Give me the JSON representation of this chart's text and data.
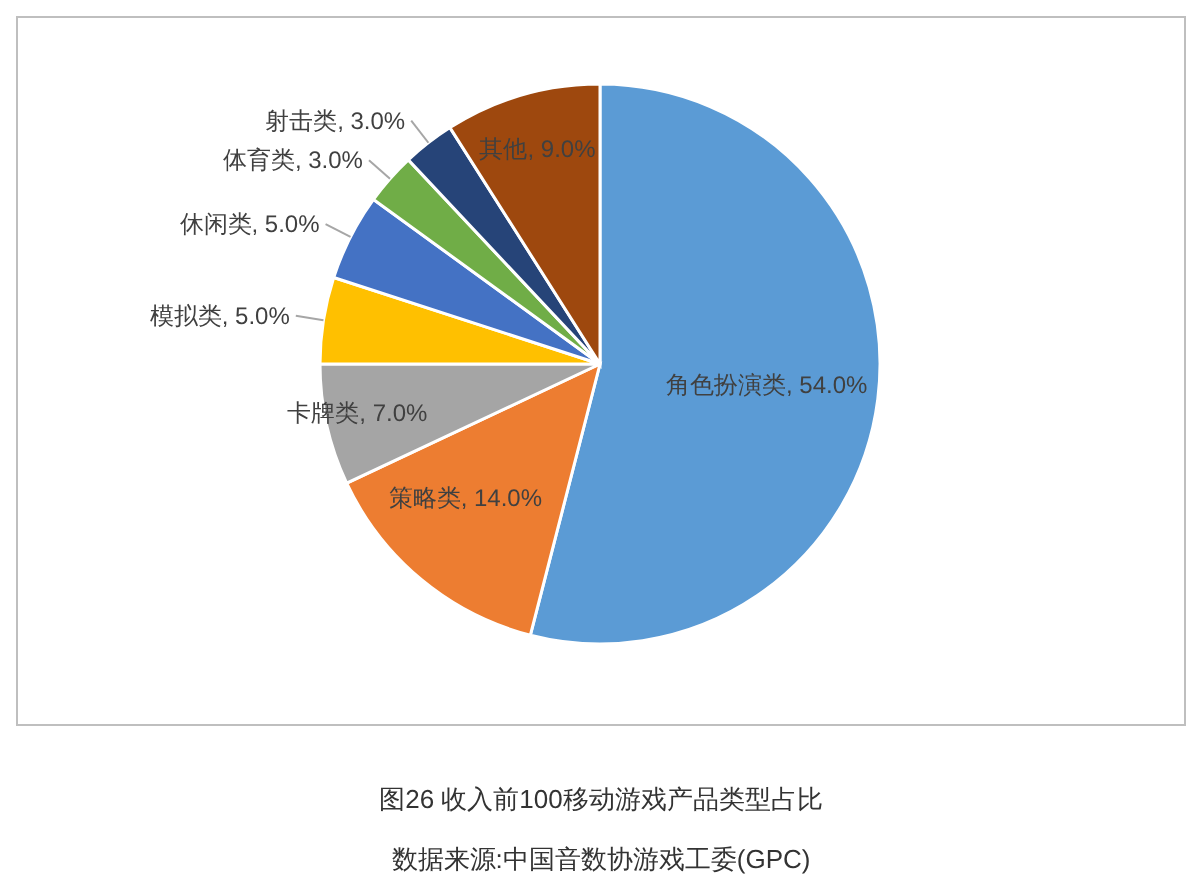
{
  "chart_data": {
    "type": "pie",
    "categories": [
      "角色扮演类",
      "策略类",
      "卡牌类",
      "模拟类",
      "休闲类",
      "体育类",
      "射击类",
      "其他"
    ],
    "values": [
      54,
      14,
      7,
      5,
      5,
      3,
      3,
      9
    ],
    "value_labels": [
      "54.0%",
      "14.0%",
      "7.0%",
      "5.0%",
      "5.0%",
      "3.0%",
      "3.0%",
      "9.0%"
    ],
    "colors": [
      "#5b9bd5",
      "#ed7d31",
      "#a5a5a5",
      "#ffc000",
      "#4472c4",
      "#70ad47",
      "#264478",
      "#9e480e"
    ],
    "title": "图26  收入前100移动游戏产品类型占比",
    "annotations": [
      "数据来源:中国音数协游戏工委(GPC)"
    ]
  }
}
